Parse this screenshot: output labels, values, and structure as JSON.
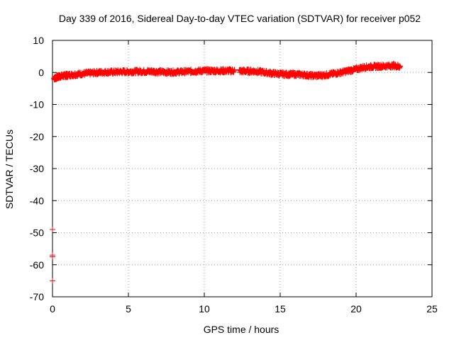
{
  "chart_data": {
    "type": "scatter",
    "title": "Day 339 of 2016, Sidereal Day-to-day VTEC variation (SDTVAR) for receiver p052",
    "xlabel": "GPS time / hours",
    "ylabel": "SDTVAR / TECUs",
    "xlim": [
      0,
      25
    ],
    "ylim": [
      -70,
      10
    ],
    "x_ticks": [
      "0",
      "5",
      "10",
      "15",
      "20",
      "25"
    ],
    "y_ticks": [
      "10",
      "0",
      "-10",
      "-20",
      "-30",
      "-40",
      "-50",
      "-60",
      "-70"
    ],
    "x_tick_values": [
      0,
      5,
      10,
      15,
      20,
      25
    ],
    "y_tick_values": [
      10,
      0,
      -10,
      -20,
      -30,
      -40,
      -50,
      -60,
      -70
    ],
    "grid": true,
    "legend": "none",
    "marker": "plus",
    "series": [
      {
        "color": "#ff0000",
        "x": [
          0.1,
          0.3,
          0.5,
          0.8,
          1.0,
          1.5,
          2.0,
          2.5,
          3.0,
          3.5,
          4.0,
          4.5,
          5.0,
          5.5,
          6.0,
          6.5,
          7.0,
          7.5,
          8.0,
          8.5,
          9.0,
          9.5,
          10.0,
          10.5,
          11.0,
          11.5,
          12.0,
          12.5,
          13.0,
          13.5,
          14.0,
          14.5,
          15.0,
          15.5,
          16.0,
          16.5,
          17.0,
          17.5,
          18.0,
          18.5,
          19.0,
          19.5,
          20.0,
          20.5,
          21.0,
          21.5,
          22.0,
          22.5,
          22.9
        ],
        "y": [
          -1.8,
          -1.5,
          -1.2,
          -1.0,
          -0.9,
          -0.6,
          -0.4,
          -0.2,
          0.0,
          0.1,
          0.1,
          0.2,
          0.2,
          0.3,
          0.3,
          0.3,
          0.2,
          0.1,
          0.1,
          0.2,
          0.3,
          0.4,
          0.5,
          0.5,
          0.5,
          0.5,
          0.5,
          0.4,
          0.4,
          0.3,
          0.0,
          -0.3,
          -0.5,
          -0.6,
          -0.6,
          -0.7,
          -1.0,
          -1.0,
          -0.8,
          -0.4,
          0.0,
          0.5,
          1.0,
          1.6,
          1.8,
          1.9,
          2.0,
          2.1,
          1.8
        ]
      },
      {
        "color": "#ff0000",
        "x": [
          0.0,
          0.0,
          0.0,
          0.0
        ],
        "y": [
          -49,
          -57,
          -57.5,
          -65
        ]
      }
    ]
  }
}
